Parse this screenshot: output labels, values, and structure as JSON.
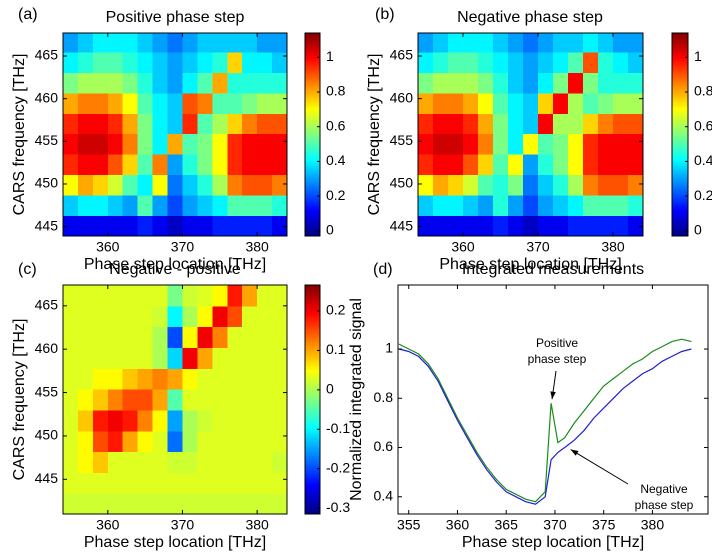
{
  "chart_data": [
    {
      "type": "heatmap",
      "panel_label": "(a)",
      "title": "Positive phase step",
      "xlabel": "Phase step location [THz]",
      "ylabel": "CARS frequency [THz]",
      "colormap": "jet",
      "x": [
        355,
        357,
        359,
        361,
        363,
        365,
        367,
        369,
        371,
        373,
        375,
        377,
        379,
        381,
        383
      ],
      "y": [
        445.1,
        447.5,
        449.9,
        452.3,
        454.7,
        457.1,
        459.5,
        461.9,
        464.3,
        466.7
      ],
      "z": [
        [
          0.1,
          0.1,
          0.1,
          0.1,
          0.1,
          0.15,
          0.1,
          0.05,
          0.1,
          0.1,
          0.15,
          0.15,
          0.15,
          0.15,
          0.1
        ],
        [
          0.35,
          0.4,
          0.4,
          0.35,
          0.3,
          0.5,
          0.3,
          0.2,
          0.3,
          0.35,
          0.4,
          0.5,
          0.5,
          0.5,
          0.45
        ],
        [
          0.7,
          0.8,
          0.75,
          0.65,
          0.5,
          0.4,
          0.7,
          0.25,
          0.35,
          0.45,
          0.6,
          0.85,
          0.9,
          0.9,
          0.85
        ],
        [
          0.95,
          1.0,
          1.0,
          0.9,
          0.75,
          0.5,
          0.85,
          0.3,
          0.45,
          0.55,
          0.7,
          0.95,
          1.0,
          1.0,
          1.0
        ],
        [
          1.0,
          1.05,
          1.05,
          1.0,
          0.85,
          0.55,
          0.4,
          0.8,
          0.5,
          0.55,
          0.7,
          0.95,
          1.0,
          1.0,
          1.0
        ],
        [
          0.95,
          1.0,
          1.0,
          0.95,
          0.8,
          0.55,
          0.4,
          0.35,
          0.95,
          0.5,
          0.6,
          0.75,
          0.85,
          0.9,
          0.9
        ],
        [
          0.8,
          0.85,
          0.85,
          0.8,
          0.7,
          0.5,
          0.4,
          0.35,
          0.9,
          0.85,
          0.5,
          0.5,
          0.55,
          0.6,
          0.6
        ],
        [
          0.55,
          0.6,
          0.6,
          0.6,
          0.55,
          0.45,
          0.35,
          0.3,
          0.4,
          0.5,
          0.8,
          0.45,
          0.45,
          0.45,
          0.45
        ],
        [
          0.4,
          0.45,
          0.5,
          0.5,
          0.45,
          0.4,
          0.35,
          0.3,
          0.35,
          0.4,
          0.45,
          0.75,
          0.4,
          0.4,
          0.35
        ],
        [
          0.3,
          0.35,
          0.4,
          0.4,
          0.4,
          0.35,
          0.3,
          0.25,
          0.3,
          0.35,
          0.35,
          0.35,
          0.35,
          0.3,
          0.3
        ]
      ],
      "xlim": [
        354,
        384
      ],
      "ylim": [
        443.9,
        467.7
      ],
      "xticks": [
        360,
        370,
        380
      ],
      "yticks": [
        445,
        450,
        455,
        460,
        465
      ],
      "clim": [
        -0.03,
        1.14
      ],
      "cticks": [
        0,
        0.2,
        0.4,
        0.6,
        0.8,
        1
      ]
    },
    {
      "type": "heatmap",
      "panel_label": "(b)",
      "title": "Negative phase step",
      "xlabel": "Phase step location [THz]",
      "ylabel": "CARS frequency [THz]",
      "colormap": "jet",
      "x": [
        355,
        357,
        359,
        361,
        363,
        365,
        367,
        369,
        371,
        373,
        375,
        377,
        379,
        381,
        383
      ],
      "y": [
        445.1,
        447.5,
        449.9,
        452.3,
        454.7,
        457.1,
        459.5,
        461.9,
        464.3,
        466.7
      ],
      "z": [
        [
          0.1,
          0.1,
          0.1,
          0.1,
          0.1,
          0.15,
          0.1,
          0.05,
          0.1,
          0.1,
          0.15,
          0.15,
          0.15,
          0.15,
          0.1
        ],
        [
          0.35,
          0.4,
          0.4,
          0.35,
          0.3,
          0.45,
          0.3,
          0.2,
          0.3,
          0.35,
          0.4,
          0.5,
          0.5,
          0.5,
          0.45
        ],
        [
          0.7,
          0.8,
          0.75,
          0.65,
          0.5,
          0.45,
          0.55,
          0.25,
          0.35,
          0.45,
          0.6,
          0.85,
          0.9,
          0.9,
          0.85
        ],
        [
          0.95,
          1.0,
          1.0,
          0.9,
          0.75,
          0.5,
          0.7,
          0.3,
          0.45,
          0.55,
          0.7,
          0.95,
          1.0,
          1.0,
          1.0
        ],
        [
          1.0,
          1.05,
          1.05,
          1.0,
          0.85,
          0.55,
          0.4,
          0.7,
          0.5,
          0.55,
          0.7,
          0.95,
          1.0,
          1.0,
          1.0
        ],
        [
          0.95,
          1.0,
          1.0,
          0.95,
          0.8,
          0.55,
          0.4,
          0.35,
          1.0,
          0.6,
          0.6,
          0.75,
          0.85,
          0.9,
          0.9
        ],
        [
          0.8,
          0.85,
          0.85,
          0.8,
          0.7,
          0.5,
          0.4,
          0.35,
          0.75,
          1.0,
          0.6,
          0.5,
          0.55,
          0.6,
          0.6
        ],
        [
          0.55,
          0.6,
          0.6,
          0.6,
          0.55,
          0.45,
          0.35,
          0.3,
          0.4,
          0.55,
          1.0,
          0.55,
          0.45,
          0.45,
          0.45
        ],
        [
          0.4,
          0.45,
          0.5,
          0.5,
          0.45,
          0.4,
          0.35,
          0.3,
          0.35,
          0.4,
          0.5,
          0.9,
          0.45,
          0.4,
          0.35
        ],
        [
          0.3,
          0.35,
          0.4,
          0.4,
          0.4,
          0.35,
          0.3,
          0.25,
          0.3,
          0.35,
          0.35,
          0.4,
          0.35,
          0.3,
          0.3
        ]
      ],
      "xlim": [
        354,
        384
      ],
      "ylim": [
        443.9,
        467.7
      ],
      "xticks": [
        360,
        370,
        380
      ],
      "yticks": [
        445,
        450,
        455,
        460,
        465
      ],
      "clim": [
        -0.03,
        1.14
      ],
      "cticks": [
        0,
        0.2,
        0.4,
        0.6,
        0.8,
        1
      ]
    },
    {
      "type": "heatmap",
      "panel_label": "(c)",
      "title": "Negative - positive",
      "xlabel": "Phase step location [THz]",
      "ylabel": "CARS frequency [THz]",
      "colormap": "jet",
      "x": [
        355,
        357,
        359,
        361,
        363,
        365,
        367,
        369,
        371,
        373,
        375,
        377,
        379,
        381,
        383
      ],
      "y": [
        442.2,
        444.6,
        447.0,
        449.4,
        451.8,
        454.2,
        456.6,
        459.0,
        461.4,
        463.8,
        466.2
      ],
      "z": [
        [
          0.02,
          0.02,
          0.02,
          0.02,
          0.02,
          0.02,
          0.02,
          0.02,
          0.02,
          0.02,
          0.02,
          0.02,
          0.02,
          0.02,
          0.02
        ],
        [
          0.03,
          0.03,
          0.03,
          0.03,
          0.03,
          0.03,
          0.03,
          0.03,
          0.03,
          0.03,
          0.03,
          0.03,
          0.03,
          0.03,
          0.03
        ],
        [
          0.03,
          0.05,
          0.08,
          0.03,
          0.03,
          0.03,
          0.03,
          0.02,
          0.02,
          0.03,
          0.03,
          0.03,
          0.03,
          0.03,
          0.02
        ],
        [
          0.03,
          0.05,
          0.15,
          0.18,
          0.1,
          0.05,
          0.03,
          -0.18,
          0.0,
          0.03,
          0.03,
          0.03,
          0.03,
          0.03,
          0.03
        ],
        [
          0.03,
          0.08,
          0.18,
          0.2,
          0.18,
          0.12,
          0.05,
          -0.15,
          0.0,
          0.02,
          0.03,
          0.03,
          0.03,
          0.03,
          0.03
        ],
        [
          0.03,
          0.05,
          0.08,
          0.12,
          0.15,
          0.15,
          0.1,
          -0.05,
          0.03,
          0.03,
          0.03,
          0.03,
          0.03,
          0.03,
          0.03
        ],
        [
          0.03,
          0.03,
          0.05,
          0.05,
          0.08,
          0.1,
          0.12,
          0.1,
          0.05,
          0.03,
          0.03,
          0.03,
          0.03,
          0.03,
          0.03
        ],
        [
          0.03,
          0.03,
          0.03,
          0.03,
          0.03,
          0.03,
          0.0,
          -0.12,
          0.2,
          0.1,
          0.03,
          0.03,
          0.03,
          0.03,
          0.03
        ],
        [
          0.03,
          0.03,
          0.03,
          0.03,
          0.03,
          0.03,
          0.0,
          -0.2,
          0.05,
          0.2,
          0.12,
          0.03,
          0.03,
          0.03,
          0.03
        ],
        [
          0.03,
          0.03,
          0.03,
          0.03,
          0.03,
          0.03,
          0.02,
          -0.1,
          0.0,
          0.05,
          0.2,
          0.15,
          0.03,
          0.03,
          0.03
        ],
        [
          0.03,
          0.03,
          0.03,
          0.03,
          0.03,
          0.03,
          0.03,
          -0.03,
          0.02,
          0.03,
          0.05,
          0.18,
          0.1,
          0.03,
          0.03
        ]
      ],
      "xlim": [
        354,
        384
      ],
      "ylim": [
        441.0,
        467.4
      ],
      "xticks": [
        360,
        370,
        380
      ],
      "yticks": [
        445,
        450,
        455,
        460,
        465
      ],
      "clim": [
        -0.315,
        0.266
      ],
      "cticks": [
        -0.3,
        -0.2,
        -0.1,
        0,
        0.1,
        0.2
      ]
    },
    {
      "type": "line",
      "panel_label": "(d)",
      "title": "Integrated measurements",
      "xlabel": "Phase step location [THz]",
      "ylabel": "Normalized integrated signal",
      "x": [
        354,
        355,
        356,
        357,
        358,
        359,
        360,
        361,
        362,
        363,
        364,
        365,
        366,
        367,
        368,
        369,
        369.6,
        370.3,
        371,
        372,
        373,
        374,
        375,
        376,
        377,
        378,
        379,
        380,
        381,
        382,
        383,
        384
      ],
      "series": [
        {
          "name": "Positive phase step",
          "color": "#1a8c1a",
          "values": [
            1.02,
            1.0,
            0.98,
            0.94,
            0.88,
            0.8,
            0.72,
            0.65,
            0.58,
            0.52,
            0.47,
            0.43,
            0.41,
            0.39,
            0.38,
            0.42,
            0.78,
            0.62,
            0.64,
            0.7,
            0.75,
            0.8,
            0.85,
            0.88,
            0.91,
            0.94,
            0.96,
            0.99,
            1.01,
            1.03,
            1.04,
            1.03
          ]
        },
        {
          "name": "Negative phase step",
          "color": "#2020d0",
          "values": [
            1.0,
            0.99,
            0.97,
            0.93,
            0.87,
            0.79,
            0.71,
            0.64,
            0.57,
            0.51,
            0.46,
            0.42,
            0.4,
            0.38,
            0.37,
            0.4,
            0.55,
            0.58,
            0.6,
            0.63,
            0.67,
            0.72,
            0.76,
            0.8,
            0.84,
            0.87,
            0.9,
            0.92,
            0.95,
            0.97,
            0.99,
            1.0
          ]
        }
      ],
      "annotations": [
        {
          "text": [
            "Positive",
            "phase step"
          ]
        },
        {
          "text": [
            "Negative",
            "phase step"
          ]
        }
      ],
      "xlim": [
        353.9,
        385.7
      ],
      "ylim": [
        0.33,
        1.26
      ],
      "xticks": [
        355,
        360,
        365,
        370,
        375,
        380
      ],
      "yticks": [
        0.4,
        0.6,
        0.8,
        1
      ]
    }
  ]
}
